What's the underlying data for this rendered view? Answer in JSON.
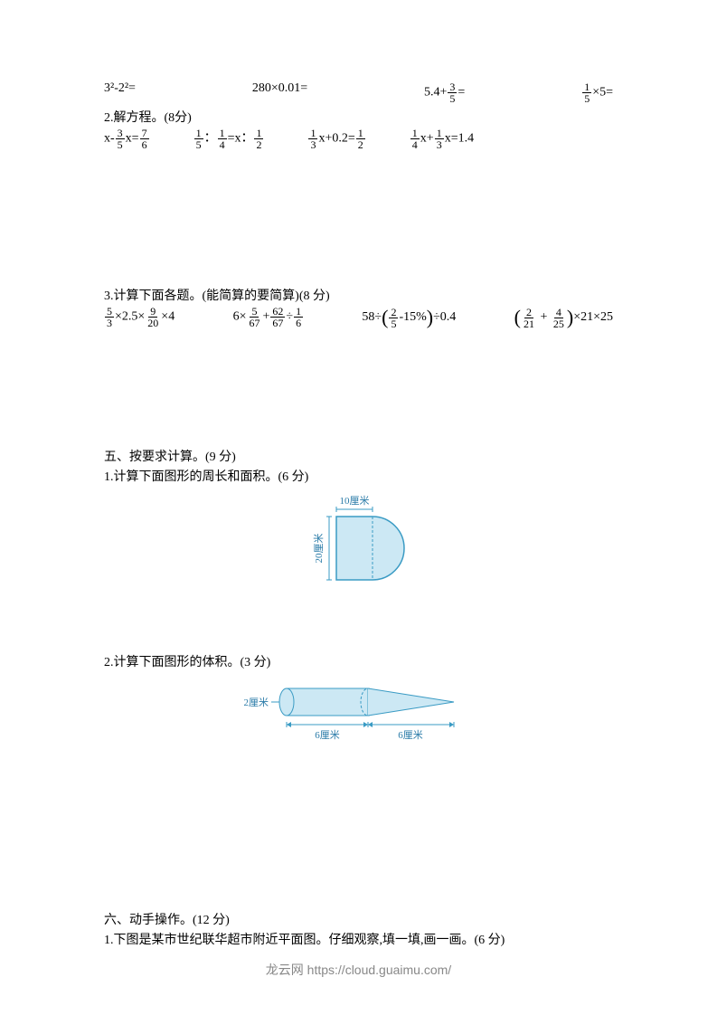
{
  "q1": {
    "items": [
      {
        "text": "3²-2²="
      },
      {
        "text": "280×0.01="
      },
      {
        "prefix": "5.4+",
        "frac": {
          "num": "3",
          "den": "5"
        },
        "suffix": "="
      },
      {
        "frac": {
          "num": "1",
          "den": "5"
        },
        "suffix": "×5="
      }
    ]
  },
  "q2": {
    "heading": "2.解方程。(8分)",
    "items": [
      {
        "parts": [
          {
            "t": "x-"
          },
          {
            "f": {
              "num": "3",
              "den": "5"
            }
          },
          {
            "t": "x="
          },
          {
            "f": {
              "num": "7",
              "den": "6"
            }
          }
        ]
      },
      {
        "parts": [
          {
            "f": {
              "num": "1",
              "den": "5"
            }
          },
          {
            "t": "："
          },
          {
            "f": {
              "num": "1",
              "den": "4"
            }
          },
          {
            "t": "=x："
          },
          {
            "f": {
              "num": "1",
              "den": "2"
            }
          }
        ]
      },
      {
        "parts": [
          {
            "f": {
              "num": "1",
              "den": "3"
            }
          },
          {
            "t": "x+0.2="
          },
          {
            "f": {
              "num": "1",
              "den": "2"
            }
          }
        ]
      },
      {
        "parts": [
          {
            "f": {
              "num": "1",
              "den": "4"
            }
          },
          {
            "t": "x+"
          },
          {
            "f": {
              "num": "1",
              "den": "3"
            }
          },
          {
            "t": "x=1.4"
          }
        ]
      }
    ]
  },
  "q3": {
    "heading": "3.计算下面各题。(能简算的要简算)(8 分)",
    "items": [
      {
        "parts": [
          {
            "f": {
              "num": "5",
              "den": "3"
            }
          },
          {
            "t": "×2.5×"
          },
          {
            "f": {
              "num": "9",
              "den": "20"
            }
          },
          {
            "t": "×4"
          }
        ]
      },
      {
        "parts": [
          {
            "t": "6×"
          },
          {
            "f": {
              "num": "5",
              "den": "67"
            }
          },
          {
            "t": "+"
          },
          {
            "f": {
              "num": "62",
              "den": "67"
            }
          },
          {
            "t": "÷"
          },
          {
            "f": {
              "num": "1",
              "den": "6"
            }
          }
        ]
      },
      {
        "parts": [
          {
            "t": "58÷"
          },
          {
            "lp": true
          },
          {
            "f": {
              "num": "2",
              "den": "5"
            }
          },
          {
            "t": "-15%"
          },
          {
            "rp": true
          },
          {
            "t": "÷0.4"
          }
        ]
      },
      {
        "parts": [
          {
            "lp": true
          },
          {
            "f": {
              "num": "2",
              "den": "21"
            }
          },
          {
            "t": " + "
          },
          {
            "f": {
              "num": "4",
              "den": "25"
            }
          },
          {
            "rp": true
          },
          {
            "t": "×21×25"
          }
        ]
      }
    ]
  },
  "s5": {
    "heading": "五、按要求计算。(9 分)",
    "q1": {
      "heading": "1.计算下面图形的周长和面积。(6 分)",
      "figure": {
        "width_label": "10厘米",
        "height_label": "20厘米",
        "fill": "#cce8f4",
        "stroke": "#3a9bc4",
        "text_color": "#2a7ba8",
        "dash_color": "#3a9bc4"
      }
    },
    "q2": {
      "heading": "2.计算下面图形的体积。(3 分)",
      "figure": {
        "radius_label": "2厘米",
        "len1_label": "6厘米",
        "len2_label": "6厘米",
        "fill": "#cce8f4",
        "stroke": "#3a9bc4",
        "text_color": "#2a7ba8"
      }
    }
  },
  "s6": {
    "heading": "六、动手操作。(12 分)",
    "q1": "1.下图是某市世纪联华超市附近平面图。仔细观察,填一填,画一画。(6 分)"
  },
  "footer": {
    "text": "龙云网 https://cloud.guaimu.com/"
  }
}
